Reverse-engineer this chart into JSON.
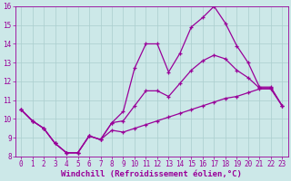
{
  "xlabel": "Windchill (Refroidissement éolien,°C)",
  "x": [
    0,
    1,
    2,
    3,
    4,
    5,
    6,
    7,
    8,
    9,
    10,
    11,
    12,
    13,
    14,
    15,
    16,
    17,
    18,
    19,
    20,
    21,
    22,
    23
  ],
  "line_max": [
    10.5,
    9.9,
    9.5,
    8.7,
    8.2,
    8.2,
    9.1,
    8.9,
    9.8,
    10.4,
    12.7,
    14.0,
    14.0,
    12.5,
    13.5,
    14.9,
    15.4,
    16.0,
    15.1,
    13.9,
    13.0,
    11.7,
    11.7,
    10.7
  ],
  "line_min": [
    10.5,
    9.9,
    9.5,
    8.7,
    8.2,
    8.2,
    9.1,
    8.9,
    9.4,
    9.3,
    9.5,
    9.7,
    9.9,
    10.1,
    10.3,
    10.5,
    10.7,
    10.9,
    11.1,
    11.2,
    11.4,
    11.6,
    11.6,
    10.7
  ],
  "line_avg": [
    10.5,
    9.9,
    9.5,
    8.7,
    8.2,
    8.2,
    9.1,
    8.9,
    9.8,
    9.9,
    10.7,
    11.5,
    11.5,
    11.2,
    11.9,
    12.6,
    13.1,
    13.4,
    13.2,
    12.6,
    12.2,
    11.65,
    11.65,
    10.7
  ],
  "color": "#990099",
  "bg_color": "#cce8e8",
  "grid_color": "#aacece",
  "ylim": [
    8,
    16
  ],
  "xlim_min": -0.5,
  "xlim_max": 23.5,
  "yticks": [
    8,
    9,
    10,
    11,
    12,
    13,
    14,
    15,
    16
  ],
  "xticks": [
    0,
    1,
    2,
    3,
    4,
    5,
    6,
    7,
    8,
    9,
    10,
    11,
    12,
    13,
    14,
    15,
    16,
    17,
    18,
    19,
    20,
    21,
    22,
    23
  ],
  "tick_fontsize": 5.5,
  "xlabel_fontsize": 6.5,
  "linewidth": 0.9,
  "markersize": 3.0
}
